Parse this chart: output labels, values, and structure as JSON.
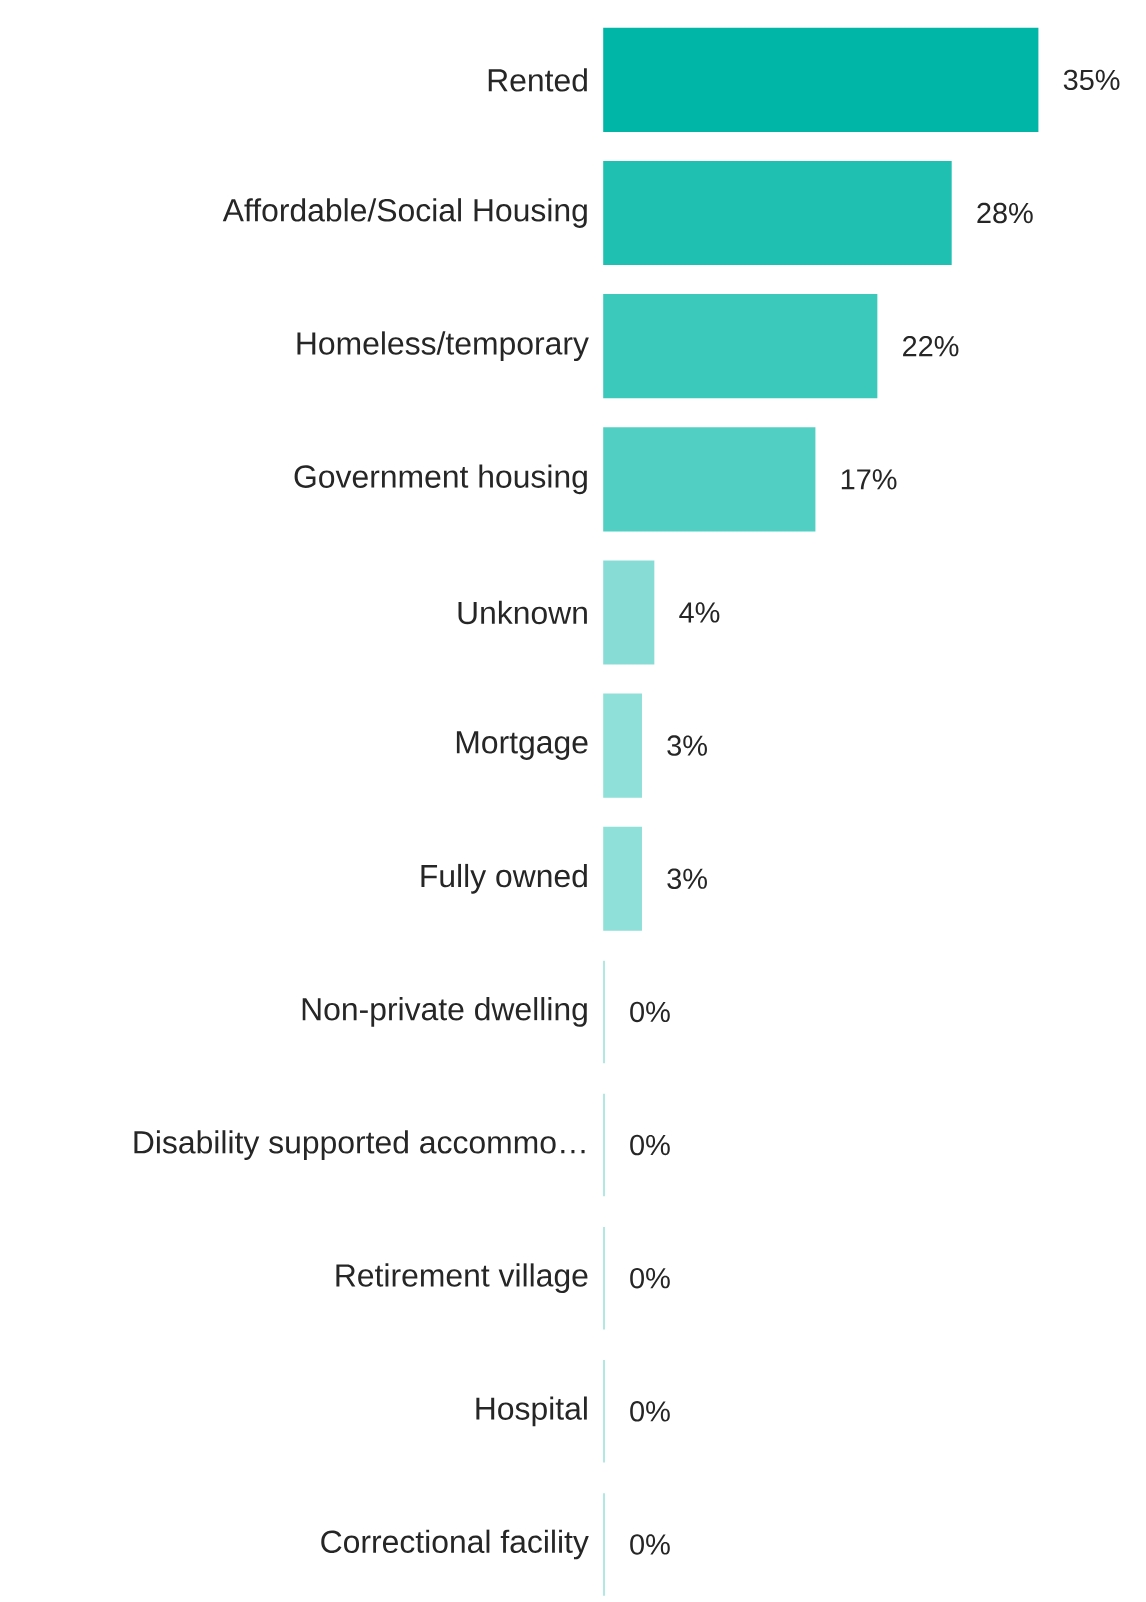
{
  "chart_data": {
    "type": "bar",
    "orientation": "horizontal",
    "categories": [
      "Rented",
      "Affordable/Social Housing",
      "Homeless/temporary",
      "Government housing",
      "Unknown",
      "Mortgage",
      "Fully owned",
      "Non-private dwelling",
      "Disability supported accommo…",
      "Retirement village",
      "Hospital",
      "Correctional facility"
    ],
    "values": [
      35,
      28,
      22,
      17,
      4,
      3,
      3,
      0,
      0,
      0,
      0,
      0
    ],
    "value_labels": [
      "35%",
      "28%",
      "22%",
      "17%",
      "4%",
      "3%",
      "3%",
      "0%",
      "0%",
      "0%",
      "0%",
      "0%"
    ],
    "colors": [
      "#00b6a7",
      "#1fc0b1",
      "#3bc9bb",
      "#52cfc3",
      "#87ddd6",
      "#8fe0d8",
      "#8fe0d8",
      "#9fe3dc",
      "#9fe3dc",
      "#9fe3dc",
      "#9fe3dc",
      "#9fe3dc"
    ]
  }
}
